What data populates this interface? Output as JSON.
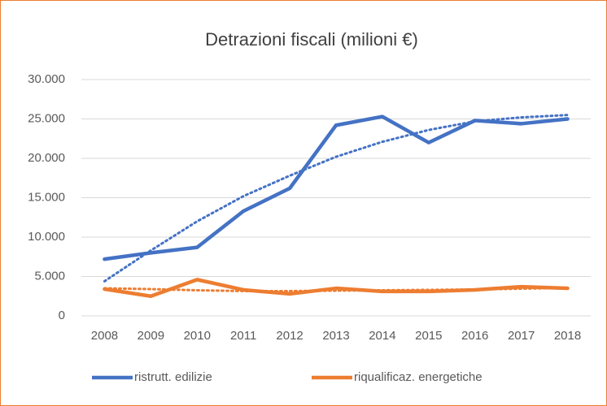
{
  "chart_data": {
    "type": "line",
    "title": "Detrazioni fiscali (milioni €)",
    "categories": [
      "2008",
      "2009",
      "2010",
      "2011",
      "2012",
      "2013",
      "2014",
      "2015",
      "2016",
      "2017",
      "2018"
    ],
    "series": [
      {
        "name": "ristrutt. edilizie",
        "color": "#4472c4",
        "values": [
          7200,
          8000,
          8700,
          13300,
          16200,
          24200,
          25300,
          22000,
          24800,
          24400,
          25000
        ],
        "trend": [
          4400,
          8300,
          12000,
          15200,
          17800,
          20200,
          22100,
          23600,
          24700,
          25200,
          25500
        ]
      },
      {
        "name": "riqualificaz. energetiche",
        "color": "#ed7d31",
        "values": [
          3400,
          2500,
          4600,
          3300,
          2800,
          3500,
          3100,
          3100,
          3300,
          3700,
          3500
        ],
        "trend": [
          3500,
          3400,
          3250,
          3150,
          3150,
          3200,
          3250,
          3300,
          3350,
          3450,
          3550
        ]
      }
    ],
    "ylim": [
      0,
      30000
    ],
    "yticks": [
      0,
      {
        "value": 5000,
        "label": "5.000"
      },
      {
        "value": 10000,
        "label": "10.000"
      },
      {
        "value": 15000,
        "label": "15.000"
      },
      {
        "value": 20000,
        "label": "20.000"
      },
      {
        "value": 25000,
        "label": "25.000"
      },
      {
        "value": 30000,
        "label": "30.000"
      }
    ],
    "grid": true,
    "legend": "bottom"
  }
}
